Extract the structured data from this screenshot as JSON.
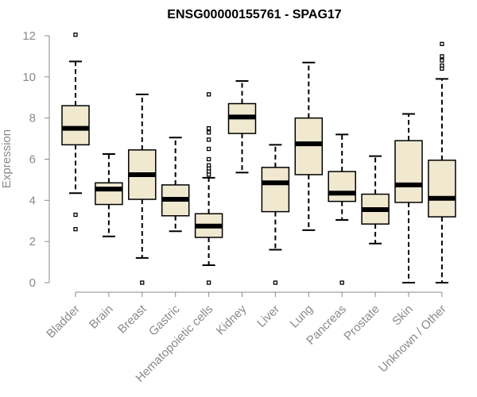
{
  "chart_data": {
    "type": "box",
    "title": "ENSG00000155761 - SPAG17",
    "xlabel": "",
    "ylabel": "Expression",
    "ylim": [
      0,
      12
    ],
    "yticks": [
      0,
      2,
      4,
      6,
      8,
      10,
      12
    ],
    "grid": false,
    "colors": {
      "box_fill": "#f0e9d0",
      "box_stroke": "#000000",
      "median": "#000000",
      "axis": "#8a8a8a"
    },
    "categories": [
      "Bladder",
      "Brain",
      "Breast",
      "Gastric",
      "Hematopoietic cells",
      "Kidney",
      "Liver",
      "Lung",
      "Pancreas",
      "Prostate",
      "Skin",
      "Unknown / Other"
    ],
    "boxes": [
      {
        "min": 4.35,
        "q1": 6.7,
        "median": 7.5,
        "q3": 8.6,
        "max": 10.75,
        "outliers": [
          12.05,
          3.3,
          2.6
        ]
      },
      {
        "min": 2.25,
        "q1": 3.8,
        "median": 4.55,
        "q3": 4.85,
        "max": 6.25,
        "outliers": []
      },
      {
        "min": 1.2,
        "q1": 4.05,
        "median": 5.25,
        "q3": 6.45,
        "max": 9.15,
        "outliers": [
          0.0
        ]
      },
      {
        "min": 2.5,
        "q1": 3.25,
        "median": 4.05,
        "q3": 4.75,
        "max": 7.05,
        "outliers": []
      },
      {
        "min": 0.85,
        "q1": 2.2,
        "median": 2.75,
        "q3": 3.35,
        "max": 5.1,
        "outliers": [
          9.15,
          7.5,
          7.3,
          6.95,
          6.5,
          6.0,
          5.7,
          5.55,
          5.4,
          5.25,
          0.0
        ]
      },
      {
        "min": 5.35,
        "q1": 7.25,
        "median": 8.05,
        "q3": 8.7,
        "max": 9.8,
        "outliers": []
      },
      {
        "min": 1.6,
        "q1": 3.45,
        "median": 4.85,
        "q3": 5.6,
        "max": 6.7,
        "outliers": [
          0.0
        ]
      },
      {
        "min": 2.55,
        "q1": 5.25,
        "median": 6.75,
        "q3": 8.0,
        "max": 10.7,
        "outliers": []
      },
      {
        "min": 3.05,
        "q1": 3.95,
        "median": 4.35,
        "q3": 5.4,
        "max": 7.2,
        "outliers": [
          0.0
        ]
      },
      {
        "min": 1.9,
        "q1": 2.85,
        "median": 3.55,
        "q3": 4.3,
        "max": 6.15,
        "outliers": []
      },
      {
        "min": 0.0,
        "q1": 3.9,
        "median": 4.75,
        "q3": 6.9,
        "max": 8.2,
        "outliers": []
      },
      {
        "min": 0.0,
        "q1": 3.2,
        "median": 4.1,
        "q3": 5.95,
        "max": 9.9,
        "outliers": [
          11.6,
          11.0,
          10.8,
          10.55,
          10.4
        ]
      }
    ]
  }
}
